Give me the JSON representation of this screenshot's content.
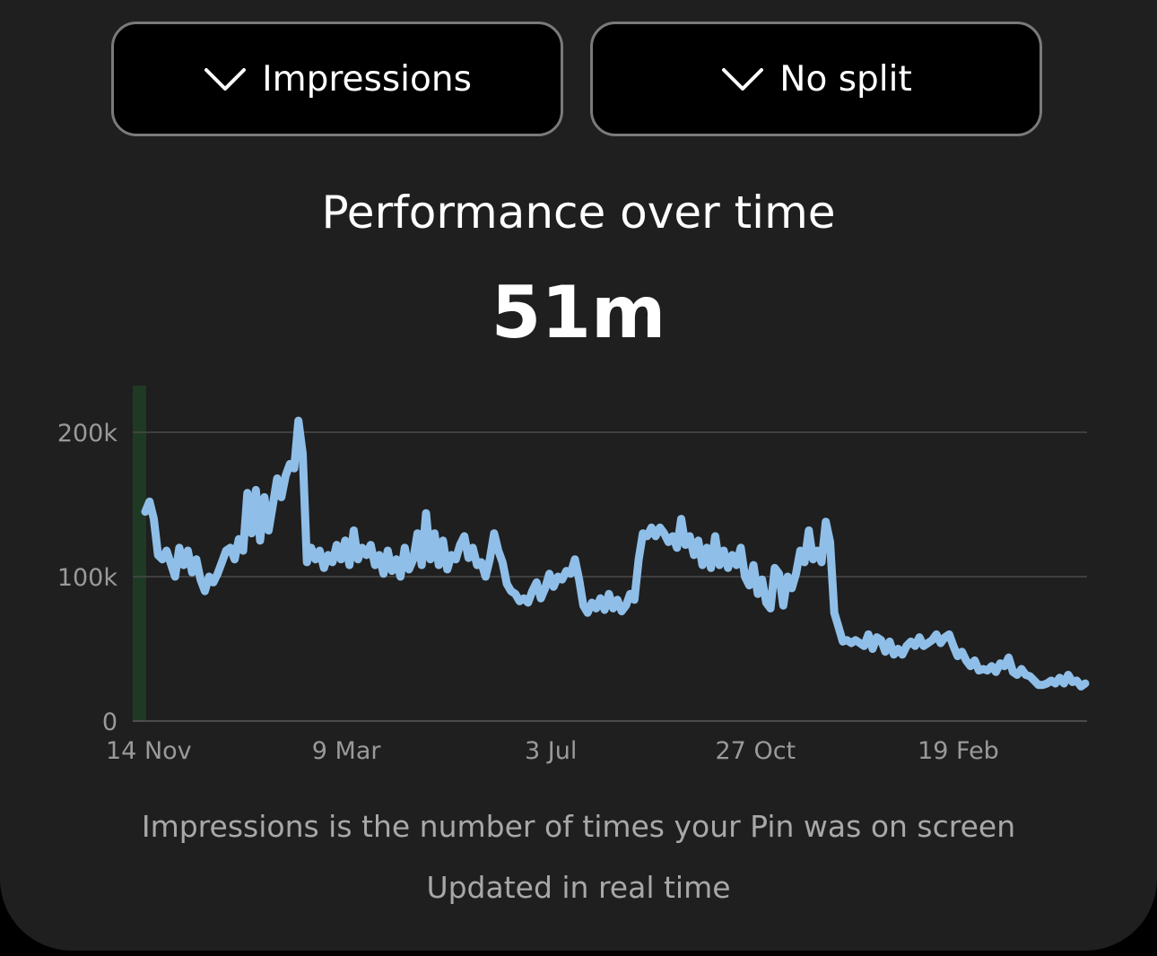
{
  "controls": {
    "metric_label": "Impressions",
    "split_label": "No split"
  },
  "header": {
    "title": "Performance over time",
    "total": "51m"
  },
  "footer": {
    "description": "Impressions is the number of times your Pin was on screen",
    "update_note": "Updated in real time"
  },
  "colors": {
    "line": "#8fbfe8",
    "highlight": "#1f3a24",
    "grid": "#4a4a4a",
    "axis_text": "#9a9a9a"
  },
  "icons": {
    "metric_dropdown": "chevron-down-icon",
    "split_dropdown": "chevron-down-icon"
  },
  "chart_data": {
    "type": "line",
    "series_name": "Impressions",
    "y_ticks": [
      "0",
      "100k",
      "200k"
    ],
    "y_tick_values": [
      0,
      100000,
      200000
    ],
    "ylim": [
      0,
      230000
    ],
    "x_tick_labels": [
      "14 Nov",
      "9 Mar",
      "3 Jul",
      "27 Oct",
      "19 Feb"
    ],
    "x_tick_days": [
      0,
      115,
      231,
      347,
      462
    ],
    "x_range_days": [
      0,
      535
    ],
    "grid": "horizontal",
    "values": [
      145000,
      152000,
      140000,
      115000,
      112000,
      118000,
      109000,
      100000,
      120000,
      108000,
      118000,
      103000,
      112000,
      98000,
      90000,
      100000,
      96000,
      102000,
      110000,
      118000,
      120000,
      112000,
      126000,
      118000,
      158000,
      130000,
      160000,
      125000,
      155000,
      132000,
      150000,
      168000,
      155000,
      170000,
      178000,
      175000,
      208000,
      185000,
      110000,
      120000,
      112000,
      118000,
      106000,
      115000,
      110000,
      122000,
      112000,
      125000,
      108000,
      132000,
      112000,
      120000,
      115000,
      122000,
      108000,
      115000,
      102000,
      118000,
      104000,
      112000,
      100000,
      120000,
      105000,
      112000,
      130000,
      108000,
      144000,
      112000,
      130000,
      108000,
      125000,
      105000,
      115000,
      112000,
      122000,
      128000,
      113000,
      120000,
      108000,
      110000,
      100000,
      112000,
      130000,
      118000,
      110000,
      95000,
      90000,
      88000,
      83000,
      85000,
      82000,
      90000,
      96000,
      85000,
      92000,
      102000,
      93000,
      100000,
      98000,
      104000,
      102000,
      112000,
      98000,
      80000,
      75000,
      82000,
      78000,
      85000,
      77000,
      88000,
      78000,
      84000,
      76000,
      80000,
      88000,
      84000,
      112000,
      130000,
      128000,
      134000,
      128000,
      134000,
      130000,
      124000,
      128000,
      120000,
      140000,
      122000,
      128000,
      115000,
      125000,
      108000,
      120000,
      106000,
      128000,
      108000,
      118000,
      106000,
      115000,
      108000,
      120000,
      100000,
      94000,
      108000,
      88000,
      98000,
      82000,
      78000,
      106000,
      102000,
      80000,
      100000,
      92000,
      102000,
      118000,
      110000,
      132000,
      112000,
      118000,
      110000,
      138000,
      124000,
      75000,
      65000,
      55000,
      56000,
      54000,
      56000,
      54000,
      52000,
      60000,
      50000,
      58000,
      56000,
      48000,
      55000,
      46000,
      50000,
      46000,
      52000,
      55000,
      52000,
      58000,
      52000,
      54000,
      56000,
      60000,
      54000,
      58000,
      60000,
      52000,
      45000,
      48000,
      42000,
      38000,
      42000,
      35000,
      36000,
      35000,
      38000,
      34000,
      40000,
      38000,
      44000,
      34000,
      32000,
      36000,
      32000,
      31000,
      28000,
      25000,
      25000,
      26000,
      28000,
      26000,
      30000,
      26000,
      32000,
      27000,
      28000,
      24000,
      26000
    ]
  }
}
